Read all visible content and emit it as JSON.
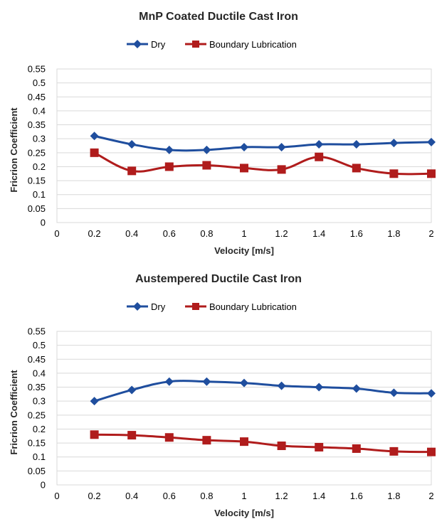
{
  "chart_data": [
    {
      "type": "line",
      "title": "MnP Coated Ductile Cast Iron",
      "xlabel": "Velocity [m/s]",
      "ylabel": "Fricrion Coefficient",
      "xlim": [
        0,
        2
      ],
      "ylim": [
        0,
        0.55
      ],
      "x_ticks": [
        "0",
        "0.2",
        "0.4",
        "0.6",
        "0.8",
        "1",
        "1.2",
        "1.4",
        "1.6",
        "1.8",
        "2"
      ],
      "y_ticks": [
        "0",
        "0.05",
        "0.1",
        "0.15",
        "0.2",
        "0.25",
        "0.3",
        "0.35",
        "0.4",
        "0.45",
        "0.5",
        "0.55"
      ],
      "grid": "horizontal",
      "legend_position": "top",
      "x": [
        0.2,
        0.4,
        0.6,
        0.8,
        1.0,
        1.2,
        1.4,
        1.6,
        1.8,
        2.0
      ],
      "series": [
        {
          "name": "Dry",
          "color": "#1f4e9e",
          "marker": "diamond",
          "values": [
            0.31,
            0.28,
            0.26,
            0.26,
            0.27,
            0.27,
            0.28,
            0.28,
            0.285,
            0.288
          ]
        },
        {
          "name": "Boundary Lubrication",
          "color": "#b01c1c",
          "marker": "square",
          "values": [
            0.25,
            0.185,
            0.2,
            0.205,
            0.195,
            0.19,
            0.235,
            0.195,
            0.175,
            0.175
          ]
        }
      ]
    },
    {
      "type": "line",
      "title": "Austempered Ductile Cast Iron",
      "xlabel": "Velocity [m/s]",
      "ylabel": "Fricrion Coefficient",
      "xlim": [
        0,
        2
      ],
      "ylim": [
        0,
        0.55
      ],
      "x_ticks": [
        "0",
        "0.2",
        "0.4",
        "0.6",
        "0.8",
        "1",
        "1.2",
        "1.4",
        "1.6",
        "1.8",
        "2"
      ],
      "y_ticks": [
        "0",
        "0.05",
        "0.1",
        "0.15",
        "0.2",
        "0.25",
        "0.3",
        "0.35",
        "0.4",
        "0.45",
        "0.5",
        "0.55"
      ],
      "grid": "horizontal",
      "legend_position": "top",
      "x": [
        0.2,
        0.4,
        0.6,
        0.8,
        1.0,
        1.2,
        1.4,
        1.6,
        1.8,
        2.0
      ],
      "series": [
        {
          "name": "Dry",
          "color": "#1f4e9e",
          "marker": "diamond",
          "values": [
            0.3,
            0.34,
            0.37,
            0.37,
            0.365,
            0.355,
            0.35,
            0.345,
            0.33,
            0.328
          ]
        },
        {
          "name": "Boundary Lubrication",
          "color": "#b01c1c",
          "marker": "square",
          "values": [
            0.18,
            0.178,
            0.17,
            0.16,
            0.155,
            0.14,
            0.135,
            0.13,
            0.12,
            0.118
          ]
        }
      ]
    }
  ]
}
